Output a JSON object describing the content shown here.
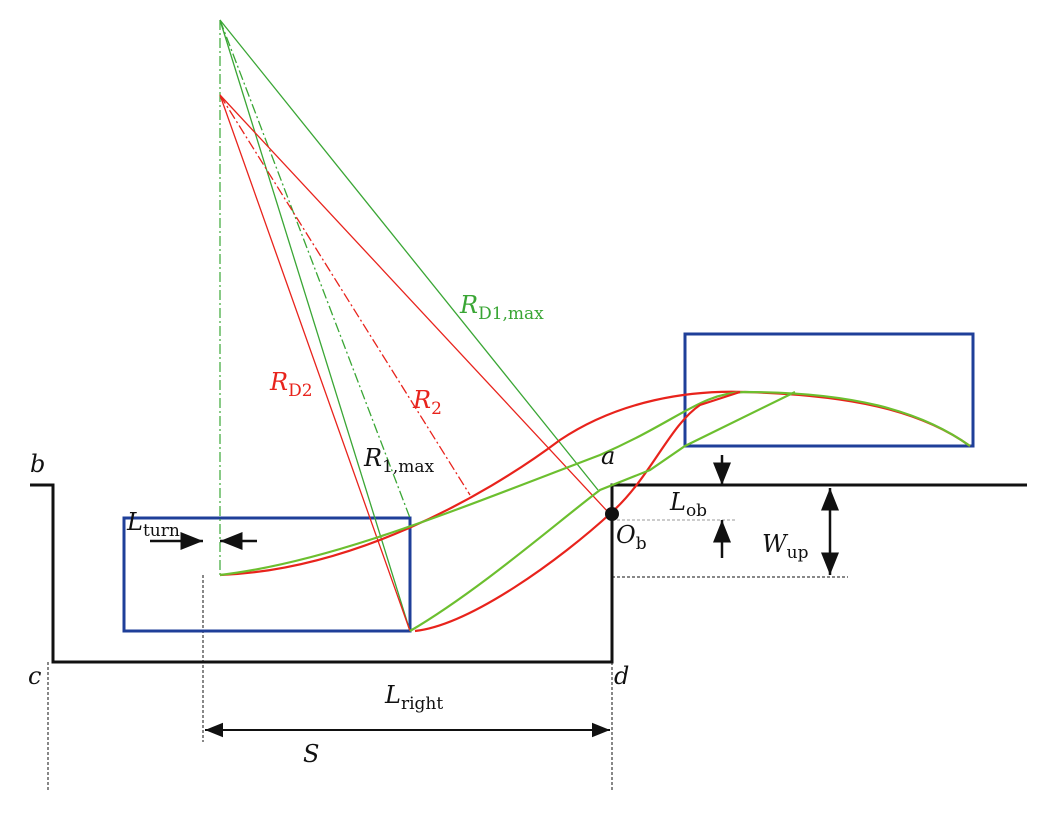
{
  "colors": {
    "red": "#e8231c",
    "green": "#3aa635",
    "lime": "#6cbf2f",
    "blue": "#1f3f99",
    "black": "#111111"
  },
  "labels": {
    "rd1max": {
      "main": "R",
      "sub": "D1,max"
    },
    "rd2": {
      "main": "R",
      "sub": "D2"
    },
    "r2": {
      "main": "R",
      "sub": "2"
    },
    "r1max": {
      "main": "R",
      "sub": "1,max"
    },
    "b": "b",
    "a": "a",
    "c": "c",
    "d": "d",
    "lturn": {
      "main": "L",
      "sub": "turn"
    },
    "lob": {
      "main": "L",
      "sub": "ob"
    },
    "ob": {
      "main": "O",
      "sub": "b"
    },
    "wup": {
      "main": "W",
      "sub": "up"
    },
    "lright": {
      "main": "L",
      "sub": "right"
    },
    "s": "S"
  }
}
